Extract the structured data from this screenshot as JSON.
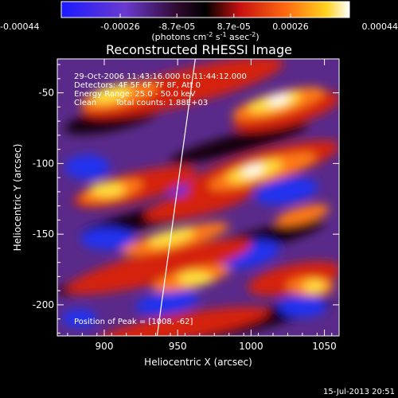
{
  "chart_data": {
    "type": "heatmap",
    "title": "Reconstructed RHESSI Image",
    "xlabel": "Heliocentric X (arcsec)",
    "ylabel": "Heliocentric Y (arcsec)",
    "xlim": [
      868,
      1060
    ],
    "ylim": [
      -222,
      -26
    ],
    "x_ticks": [
      900,
      950,
      1000,
      1050
    ],
    "y_ticks": [
      -50,
      -100,
      -150,
      -200
    ],
    "colorbar": {
      "range": [
        -0.00044,
        0.00044
      ],
      "tick_values": [
        -0.00044,
        -0.00026,
        -8.7e-05,
        8.7e-05,
        0.00026,
        0.00044
      ],
      "tick_labels": [
        "-0.00044",
        "-0.00026",
        "-8.7e-05",
        "8.7e-05",
        "0.00026",
        "0.00044"
      ],
      "unit_label": "(photons cm",
      "unit_sup1": "-2",
      "unit_mid": " s",
      "unit_sup2": "-1",
      "unit_mid2": " asec",
      "unit_sup3": "-2",
      "unit_end": ")",
      "colors": [
        "#1a1aff",
        "#6a3ad0",
        "#300a30",
        "#000000",
        "#c81010",
        "#ff6a10",
        "#ffd21e",
        "#ffffff"
      ]
    },
    "annotations": {
      "time_range": "29-Oct-2006 11:43:16.000 to 11:44:12.000",
      "detectors": "Detectors: 4F 5F 6F 7F 8F, Att 0",
      "energy": "Energy Range: 25.0 - 50.0 keV",
      "method": "Clean",
      "counts": "Total counts: 1.88E+03",
      "peak": "Position of Peak = [1008, -62]"
    },
    "limb_line": {
      "x": [
        962,
        936
      ],
      "y": [
        -26,
        -222
      ]
    },
    "grid": false
  },
  "footer": {
    "timestamp": "15-Jul-2013 20:51"
  }
}
